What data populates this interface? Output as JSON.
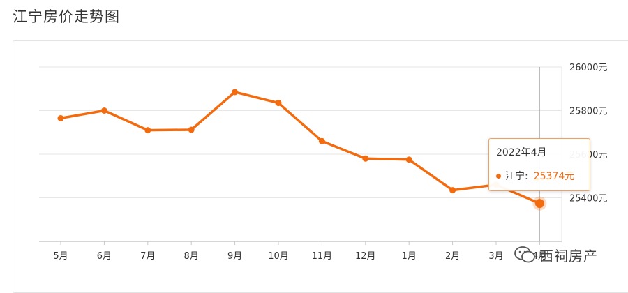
{
  "page": {
    "title": "江宁房价走势图"
  },
  "chart_data": {
    "type": "line",
    "categories": [
      "5月",
      "6月",
      "7月",
      "8月",
      "9月",
      "10月",
      "11月",
      "12月",
      "1月",
      "2月",
      "3月",
      "4月"
    ],
    "series": [
      {
        "name": "江宁",
        "values": [
          25765,
          25800,
          25710,
          25712,
          25885,
          25835,
          25660,
          25580,
          25575,
          25435,
          25460,
          25374
        ]
      }
    ],
    "ylim": [
      25200,
      26000
    ],
    "yticks": [
      26000,
      25800,
      25600,
      25400
    ],
    "ytick_labels": [
      "26000元",
      "25800元",
      "25600元",
      "25400元"
    ],
    "highlight_index": 11,
    "line_color": "#f26b0f",
    "grid": true
  },
  "tooltip": {
    "date": "2022年4月",
    "series_label": "江宁:",
    "value": "25374元"
  },
  "watermark": {
    "text": "西祠房产"
  }
}
